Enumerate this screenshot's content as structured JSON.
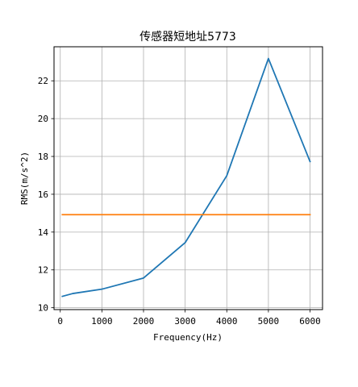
{
  "chart_data": {
    "type": "line",
    "title": "传感器短地址5773",
    "xlabel": "Frequency(Hz)",
    "ylabel": "RMS(m/s^2)",
    "xlim": [
      -150,
      6300
    ],
    "ylim": [
      9.9,
      23.8
    ],
    "xticks": [
      0,
      1000,
      2000,
      3000,
      4000,
      5000,
      6000
    ],
    "yticks": [
      10,
      12,
      14,
      16,
      18,
      20,
      22
    ],
    "grid": true,
    "series": [
      {
        "color": "#1f77b4",
        "x": [
          50,
          300,
          1000,
          2000,
          3000,
          4000,
          5000,
          6000
        ],
        "y": [
          10.6,
          10.75,
          10.98,
          11.57,
          13.44,
          16.98,
          23.18,
          17.73
        ]
      },
      {
        "color": "#ff7f0e",
        "x": [
          50,
          6000
        ],
        "y": [
          14.92,
          14.92
        ]
      }
    ]
  }
}
